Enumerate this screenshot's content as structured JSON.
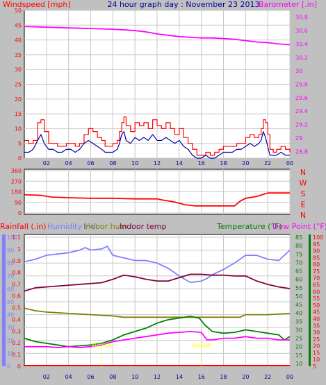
{
  "colors": {
    "background": "#c0c0c0",
    "plot": "#ffffff",
    "grid": "#c8c8c8",
    "wind": "#ff0000",
    "wind_avg": "#0000a0",
    "barometer": "#ff00ff",
    "direction": "#ff0000",
    "rain": "#ff0000",
    "humidity": "#8080ff",
    "indoor_hum": "#808000",
    "indoor_temp": "#800040",
    "temperature": "#008000",
    "dew_point": "#ff00ff",
    "marker": "#ffff00",
    "title_blue": "#0000a0"
  },
  "chart_data": [
    {
      "type": "line",
      "name": "wind-baro",
      "title": "24 hour graph day : November 23 2013",
      "ylabel_left": "Windspeed [mph]",
      "ylabel_right": "Barometer [.in]",
      "y_left_ticks": [
        "50",
        "45",
        "40",
        "35",
        "30",
        "25",
        "20",
        "15",
        "10",
        "5",
        "0"
      ],
      "y_right_ticks": [
        "30.8",
        "30.6",
        "30.4",
        "30.2",
        "30",
        "29.8",
        "29.6",
        "29.4",
        "29.2",
        "29",
        "28.8"
      ],
      "ylim_left": [
        0,
        50
      ],
      "ylim_right": [
        28.7,
        30.9
      ],
      "x_ticks": [
        "02",
        "04",
        "06",
        "08",
        "10",
        "12",
        "14",
        "16",
        "18",
        "20",
        "22",
        "00"
      ],
      "xlim": [
        0,
        24
      ],
      "series": [
        {
          "key": "gust",
          "color_key": "wind",
          "step": true,
          "x": [
            0.0,
            0.4,
            0.8,
            1.2,
            1.5,
            1.8,
            2.2,
            2.6,
            3.0,
            3.4,
            3.8,
            4.2,
            4.6,
            5.0,
            5.4,
            5.8,
            6.2,
            6.6,
            7.0,
            7.3,
            7.6,
            8.0,
            8.4,
            8.6,
            8.8,
            9.0,
            9.2,
            9.6,
            10.0,
            10.4,
            10.8,
            11.2,
            11.6,
            12.0,
            12.4,
            12.8,
            13.2,
            13.6,
            14.0,
            14.4,
            14.8,
            15.2,
            15.6,
            16.0,
            16.4,
            16.8,
            17.2,
            17.6,
            18.0,
            18.4,
            18.8,
            19.2,
            19.6,
            20.0,
            20.4,
            20.8,
            21.2,
            21.4,
            21.6,
            21.8,
            22.0,
            22.2,
            22.5,
            22.8,
            23.2,
            23.6,
            24.0
          ],
          "y": [
            6,
            5,
            6,
            12,
            13,
            9,
            5,
            5,
            4,
            4,
            5,
            5,
            4,
            5,
            8,
            10,
            9,
            7,
            6,
            4,
            4,
            5,
            6,
            9,
            12,
            14,
            11,
            9,
            12,
            11,
            12,
            10,
            13,
            11,
            10,
            12,
            10,
            8,
            10,
            7,
            5,
            3,
            1,
            1,
            2,
            1,
            2,
            3,
            4,
            4,
            4,
            5,
            5,
            7,
            8,
            7,
            8,
            10,
            13,
            12,
            8,
            3,
            2,
            3,
            4,
            3,
            2
          ]
        },
        {
          "key": "average",
          "color_key": "wind_avg",
          "step": false,
          "x": [
            0.0,
            0.4,
            0.8,
            1.2,
            1.5,
            1.8,
            2.2,
            2.6,
            3.0,
            3.4,
            3.8,
            4.2,
            4.6,
            5.0,
            5.4,
            5.8,
            6.2,
            6.6,
            7.0,
            7.3,
            7.6,
            8.0,
            8.4,
            8.6,
            8.8,
            9.0,
            9.2,
            9.6,
            10.0,
            10.4,
            10.8,
            11.2,
            11.6,
            12.0,
            12.4,
            12.8,
            13.2,
            13.6,
            14.0,
            14.4,
            14.8,
            15.2,
            15.6,
            16.0,
            16.4,
            16.8,
            17.2,
            17.6,
            18.0,
            18.4,
            18.8,
            19.2,
            19.6,
            20.0,
            20.4,
            20.8,
            21.2,
            21.4,
            21.6,
            21.8,
            22.0,
            22.2,
            22.5,
            22.8,
            23.2,
            23.6,
            24.0
          ],
          "y": [
            2,
            2,
            3,
            6,
            8,
            5,
            3,
            3,
            2,
            2,
            3,
            3,
            2,
            3,
            5,
            6,
            5,
            4,
            3,
            2,
            2,
            2,
            3,
            5,
            8,
            9,
            6,
            5,
            7,
            6,
            7,
            6,
            8,
            6,
            6,
            7,
            6,
            5,
            6,
            4,
            3,
            1,
            0,
            0,
            1,
            0,
            0,
            1,
            2,
            2,
            2,
            3,
            3,
            4,
            5,
            4,
            5,
            6,
            9,
            7,
            4,
            1,
            1,
            1,
            2,
            1,
            1
          ]
        },
        {
          "key": "barometer",
          "color_key": "barometer",
          "axis": "right",
          "step": false,
          "x": [
            0,
            2,
            4,
            6,
            8,
            9,
            10,
            11,
            12,
            13,
            14,
            15,
            16,
            17,
            18,
            19,
            20,
            21,
            22,
            23,
            24
          ],
          "y": [
            30.66,
            30.65,
            30.64,
            30.63,
            30.62,
            30.61,
            30.6,
            30.58,
            30.55,
            30.53,
            30.51,
            30.5,
            30.49,
            30.49,
            30.48,
            30.47,
            30.45,
            30.43,
            30.42,
            30.4,
            30.39
          ]
        }
      ]
    },
    {
      "type": "line",
      "name": "wind-direction",
      "y_ticks": [
        "360",
        "270",
        "180",
        "90",
        "0"
      ],
      "compass": [
        "N",
        "W",
        "S",
        "E",
        "N"
      ],
      "ylim": [
        0,
        360
      ],
      "xlim": [
        0,
        24
      ],
      "series": [
        {
          "key": "direction",
          "color_key": "direction",
          "step": false,
          "x": [
            0,
            1.5,
            2.5,
            4,
            6,
            8,
            10,
            12,
            12.5,
            13.5,
            14.5,
            15.5,
            16,
            17,
            18,
            19,
            19.5,
            20,
            21,
            22,
            24
          ],
          "y": [
            155,
            150,
            135,
            130,
            125,
            125,
            120,
            120,
            110,
            95,
            70,
            60,
            60,
            60,
            60,
            60,
            100,
            125,
            140,
            170,
            170
          ]
        }
      ]
    },
    {
      "type": "line",
      "name": "climate",
      "labels": [
        "Rainfall (.in)",
        "Humidity (%)",
        "Indoor hum",
        "Indoor temp",
        "Temperature (°F)",
        "Dew Point (°F)"
      ],
      "rain_ticks": [
        "1.1",
        "1",
        "0.9",
        "0.8",
        "0.7",
        "0.6",
        "0.5",
        "0.4",
        "0.3",
        "0.2",
        "0.1",
        "0"
      ],
      "hum_ticks": [
        "100",
        "90",
        "80",
        "70",
        "60",
        "50",
        "40",
        "30",
        "20",
        "10",
        "0"
      ],
      "temp_ticks": [
        "85",
        "80",
        "75",
        "70",
        "65",
        "60",
        "55",
        "50",
        "45",
        "40",
        "35",
        "30",
        "25",
        "20",
        "15",
        "10"
      ],
      "dew_ticks": [
        "100",
        "95",
        "90",
        "85",
        "80",
        "75",
        "70",
        "65",
        "60",
        "55",
        "50",
        "45",
        "40",
        "35",
        "30",
        "25",
        "20",
        "15",
        "10",
        "5"
      ],
      "ylim_humidity": [
        0,
        100
      ],
      "ylim_temperature": [
        10,
        85
      ],
      "ylim_dew": [
        5,
        100
      ],
      "xlim": [
        0,
        24
      ],
      "markers": [
        {
          "x": 7.0,
          "label": "Sunrise"
        },
        {
          "x": 16.0,
          "label": "Sunset"
        }
      ],
      "series": [
        {
          "key": "humidity",
          "color_key": "humidity",
          "x": [
            0,
            1,
            2,
            3,
            4,
            5,
            5.5,
            6,
            7,
            7.5,
            8,
            9,
            10,
            11,
            12,
            13,
            14,
            15,
            16,
            16.5,
            17,
            18,
            19,
            20,
            21,
            22,
            23,
            24
          ],
          "y": [
            81,
            83,
            86,
            87,
            88,
            90,
            92,
            90,
            91,
            93,
            86,
            84,
            82,
            82,
            80,
            76,
            70,
            65,
            66,
            68,
            71,
            75,
            80,
            86,
            86,
            83,
            82,
            90
          ]
        },
        {
          "key": "indoor_temp",
          "color_key": "indoor_temp",
          "x": [
            0,
            1,
            2,
            3,
            4,
            5,
            6,
            7,
            8,
            9,
            10,
            11,
            12,
            13,
            14,
            15,
            16,
            17,
            18,
            19,
            20,
            21,
            22,
            23,
            24
          ],
          "y": [
            53,
            55,
            55.5,
            56,
            56.5,
            57,
            57.5,
            58,
            60,
            62.5,
            61.5,
            60,
            59,
            59,
            61,
            63,
            63,
            62.5,
            62.5,
            62,
            62,
            59,
            57,
            55.5,
            54.5
          ]
        },
        {
          "key": "indoor_hum",
          "color_key": "indoor_hum",
          "x": [
            0,
            1,
            2,
            4,
            6,
            8,
            9,
            10,
            12,
            14,
            16,
            18,
            19,
            19.5,
            20,
            22,
            24
          ],
          "y": [
            45,
            43,
            42,
            41,
            40,
            39,
            38,
            38,
            38,
            38,
            38,
            38,
            38,
            38,
            40,
            40,
            41
          ]
        },
        {
          "key": "temperature",
          "color_key": "temperature",
          "x": [
            0,
            1,
            2,
            3,
            4,
            5,
            6,
            7,
            8,
            9,
            10,
            11,
            12,
            13,
            14,
            15,
            15.8,
            16.3,
            17,
            18,
            19,
            20,
            21,
            22,
            23,
            23.5,
            24
          ],
          "y": [
            25,
            23,
            22,
            21,
            20,
            20.5,
            21,
            22,
            24,
            27,
            29,
            31,
            34,
            36,
            37,
            38,
            37,
            33,
            29,
            28,
            28.5,
            30,
            29,
            28,
            27,
            24,
            26
          ]
        },
        {
          "key": "dew_point",
          "color_key": "dew_point",
          "x": [
            0,
            1,
            2,
            3,
            4,
            5,
            6,
            7,
            8,
            9,
            10,
            11,
            12,
            13,
            14,
            15,
            16,
            16.5,
            17,
            18,
            19,
            20,
            21,
            22,
            23,
            24
          ],
          "y": [
            20,
            20,
            20,
            19.5,
            20,
            19.5,
            20,
            21,
            23,
            24,
            25,
            26,
            27,
            28,
            28.5,
            29,
            28.5,
            24,
            24,
            25,
            25,
            26,
            25,
            25,
            24,
            24
          ]
        }
      ]
    }
  ]
}
